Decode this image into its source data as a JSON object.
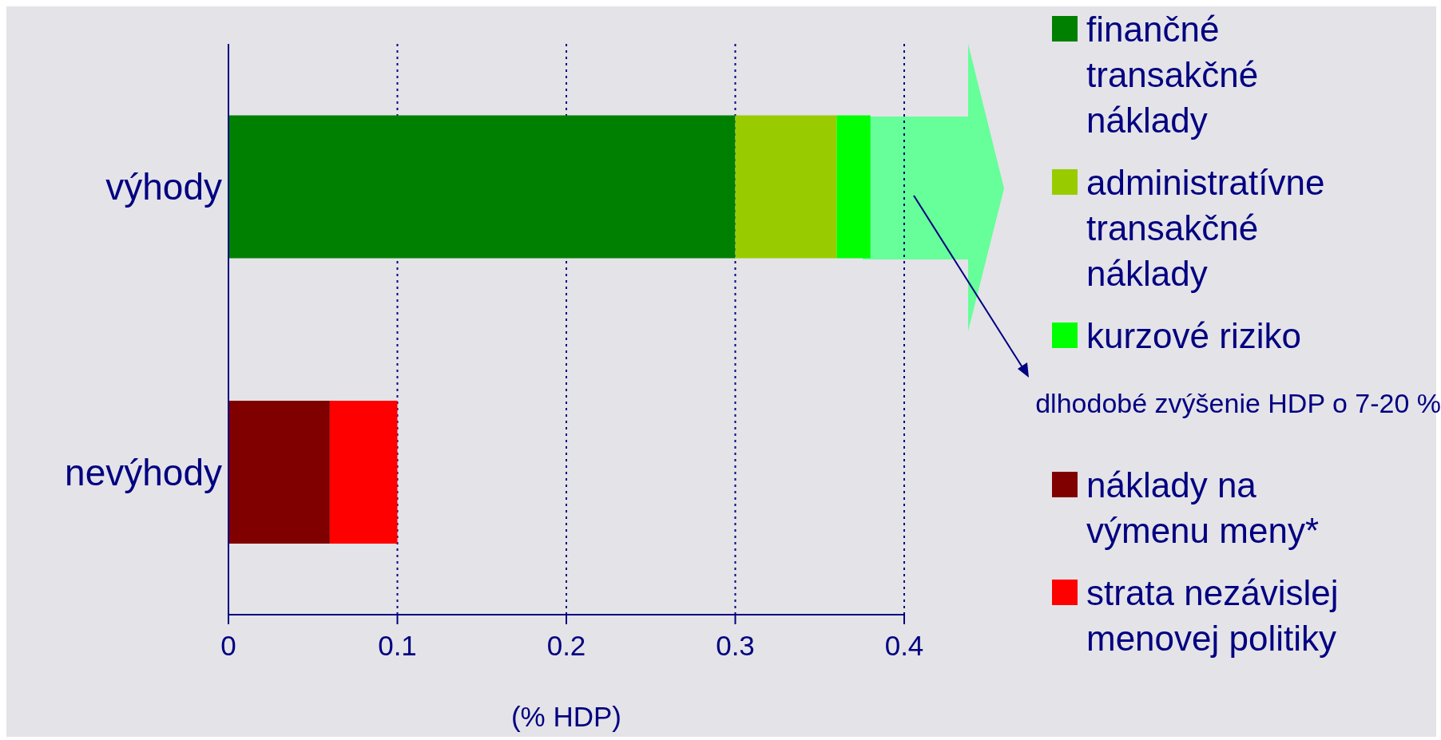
{
  "chart_data": {
    "type": "bar",
    "orientation": "horizontal",
    "stacked": true,
    "categories": [
      "výhody",
      "nevýhody"
    ],
    "series": [
      {
        "name": "finančné transakčné náklady",
        "color": "#008000",
        "values": [
          0.3,
          null
        ]
      },
      {
        "name": "administratívne transakčné náklady",
        "color": "#99cc00",
        "values": [
          0.06,
          null
        ]
      },
      {
        "name": "kurzové riziko",
        "color": "#00ff00",
        "values": [
          0.02,
          null
        ]
      },
      {
        "name": "náklady na výmenu meny*",
        "color": "#800000",
        "values": [
          null,
          0.06
        ]
      },
      {
        "name": "strata nezávislej menovej politiky",
        "color": "#ff0000",
        "values": [
          null,
          0.04
        ]
      }
    ],
    "xlim": [
      0,
      0.4
    ],
    "xticks": [
      0,
      0.1,
      0.2,
      0.3,
      0.4
    ],
    "xlabel": "(% HDP)",
    "annotations": [
      "dlhodobé zvýšenie HDP o 7-20 %"
    ],
    "grid": "x",
    "legend": "right"
  }
}
